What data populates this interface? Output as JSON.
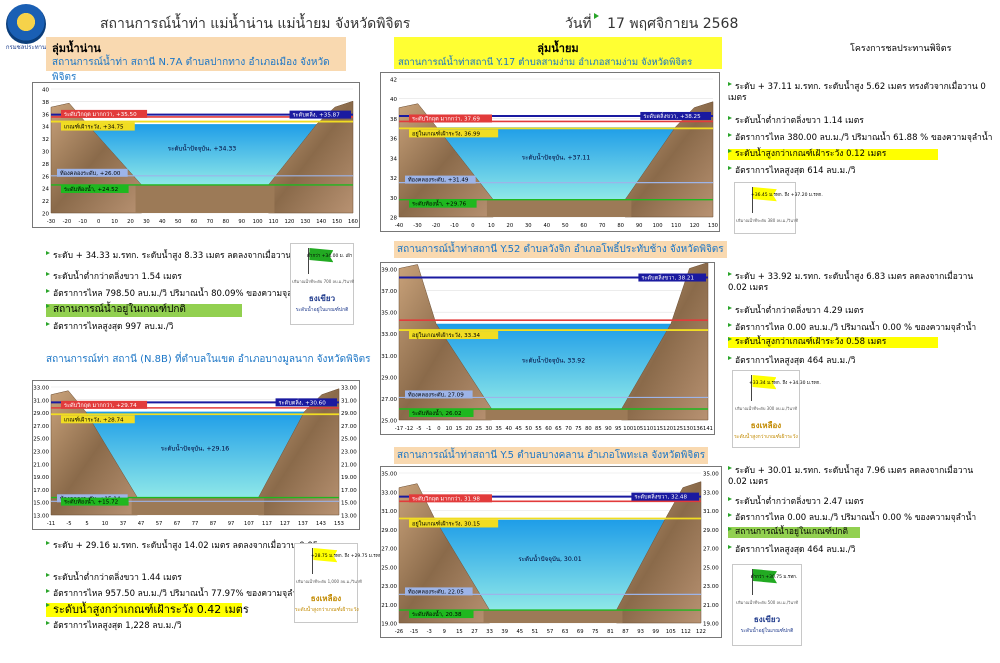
{
  "header": {
    "title": "สถานการณ์น้ำท่า แม่น้ำน่าน แม่น้ำยม จังหวัดพิจิตร",
    "date_label": "วันที่",
    "date_value": "17 พฤศจิกายน 2568",
    "logo_caption": "กรมชลประทาน",
    "project": "โครงการชลประทานพิจิตร"
  },
  "colors": {
    "bank": "#1a1aa0",
    "danger": "#e23b3b",
    "watch": "#f1dd22",
    "low": "#9db4e8",
    "bed": "#1fb81f",
    "water_top": "#1e9de8",
    "water_bottom": "#8fe8e8",
    "highlight_yellow": "#ffff00",
    "highlight_green": "#92d050",
    "flag_green": "#22aa22",
    "flag_yellow": "#ffff00"
  },
  "sections": {
    "nan": {
      "title": "ลุ่มน้ำน่าน"
    },
    "yom": {
      "title": "ลุ่มน้ำยม"
    }
  },
  "stations": [
    {
      "id": "n7a",
      "title": "สถานการณ์น้ำท่า สถานี N.7A ตำบลปากทาง อำเภอเมือง จังหวัดพิจิตร",
      "chart": {
        "y_ticks": [
          "40",
          "38",
          "36",
          "34",
          "32",
          "30",
          "28",
          "26",
          "24",
          "22",
          "20"
        ],
        "x_ticks": [
          "-30",
          "-20",
          "-10",
          "0",
          "10",
          "20",
          "30",
          "40",
          "50",
          "60",
          "70",
          "80",
          "90",
          "100",
          "110",
          "120",
          "130",
          "140",
          "150",
          "160"
        ],
        "bank_label": "ระดับตลิ่ง, +35.87",
        "danger_label": "ระดับวิกฤต มากกว่า, +35.50",
        "watch_label": "เกณฑ์เฝ้าระวัง, +34.75",
        "current_label": "ระดับน้ำปัจจุบัน, +34.33",
        "low_label": "ท้องคลองระดับ, +26.00",
        "bed_label": "ระดับท้องน้ำ, +24.52",
        "lines": {
          "bank": 35.87,
          "danger": 35.5,
          "watch": 34.75,
          "current": 34.33,
          "low": 26.0,
          "bed": 24.52
        },
        "ylim": [
          20,
          40
        ]
      },
      "info": [
        "ระดับ + 34.33 ม.รทก. ระดับน้ำสูง 8.33 เมตร ลดลงจากเมื่อวาน 0.2 เมตร",
        "ระดับน้ำต่ำกว่าตลิ่งขวา 1.54 เมตร",
        "อัตราการไหล 798.50 ลบ.ม./วิ ปริมาณน้ำ 80.09% ของความจุลำน้ำ",
        "สถานการณ์น้ำอยู่ในเกณฑ์ปกติ",
        "อัตราการไหลสูงสุด 997 ลบ.ม./วิ"
      ],
      "card": {
        "flag_text": "ต่ำกว่า +34.00 ม. เฝ้า",
        "note": "ปริมาณน้ำที่ระดับ 700 ลบ.ม./วินาที",
        "status": "ธงเขียว",
        "sub": "ระดับน้ำอยู่ในเกณฑ์ปกติ"
      }
    },
    {
      "id": "n8b",
      "title": "สถานการณ์ท่า สถานี (N.8B) ที่ตำบลในเขต อำเภอบางมูลนาก จังหวัดพิจิตร",
      "chart": {
        "y_ticks": [
          "+33.00",
          "+31.00",
          "+29.00",
          "+27.00",
          "+25.00",
          "+23.00",
          "+21.00",
          "+19.00",
          "+17.00",
          "+15.00",
          "+13.00"
        ],
        "y_ticks_right": [
          "33.00",
          "31.00",
          "29.00",
          "27.00",
          "25.00",
          "23.00",
          "21.00",
          "19.00",
          "17.00",
          "15.00",
          "13.00"
        ],
        "x_ticks": [
          "-11",
          "-5",
          "5",
          "10",
          "37",
          "47",
          "57",
          "67",
          "77",
          "87",
          "97",
          "107",
          "117",
          "127",
          "137",
          "143",
          "153"
        ],
        "bank_label": "ระดับตลิ่ง, +30.60",
        "danger_label": "ระดับวิกฤต มากกว่า, +29.74",
        "watch_label": "เกณฑ์เฝ้าระวัง, +28.74",
        "current_label": "ระดับน้ำปัจจุบัน, +29.16",
        "low_label": "ท้องคลองระดับ, +15.14",
        "bed_label": "ระดับท้องน้ำ, +15.72",
        "lines": {
          "bank": 30.6,
          "danger": 29.74,
          "watch": 28.74,
          "current": 29.16,
          "low": 15.14,
          "bed": 15.72
        },
        "ylim": [
          13,
          33
        ]
      },
      "info": [
        "ระดับ + 29.16 ม.รทก. ระดับน้ำสูง 14.02 เมตร ลดลงจากเมื่อวาน 0.05 เมตร",
        "ระดับน้ำต่ำกว่าตลิ่งขวา 1.44 เมตร",
        "อัตราการไหล 957.50 ลบ.ม./วิ ปริมาณน้ำ 77.97% ของความจุลำน้ำ",
        "ระดับน้ำสูงกว่าเกณฑ์เฝ้าระวัง 0.42 เมตร",
        "อัตราการไหลสูงสุด 1,228 ลบ.ม./วิ"
      ],
      "card": {
        "flag_text": "+28.75 ม.รทก. ถึง +29.75 ม.รทก.",
        "note": "ปริมาณน้ำที่ระดับ 1,000 ลบ.ม./วินาที",
        "status": "ธงเหลือง",
        "sub": "ระดับน้ำสูงกว่าเกณฑ์เฝ้าระวัง"
      }
    },
    {
      "id": "y17",
      "title": "สถานการณ์น้ำท่าสถานี Y.17 ตำบลสามง่าม อำเภอสามง่าม จังหวัดพิจิตร",
      "chart": {
        "y_ticks": [
          "42",
          "40",
          "38",
          "36",
          "34",
          "32",
          "30",
          "28"
        ],
        "x_ticks": [
          "-40",
          "-30",
          "-20",
          "-10",
          "0",
          "10",
          "20",
          "30",
          "40",
          "50",
          "60",
          "70",
          "80",
          "90",
          "100",
          "110",
          "120",
          "130"
        ],
        "bank_label": "ระดับตลิ่งขวา, +38.25",
        "danger_label": "ระดับวิกฤต มากกว่า, 37.69",
        "watch_label": "อยู่ในเกณฑ์เฝ้าระวัง, 36.99",
        "current_label": "ระดับน้ำปัจจุบัน, +37.11",
        "low_label": "ท้องคลองระดับ, +31.49",
        "bed_label": "ระดับท้องน้ำ, +29.76",
        "lines": {
          "bank": 38.25,
          "danger": 37.69,
          "watch": 36.99,
          "current": 37.11,
          "low": 31.49,
          "bed": 29.76
        },
        "ylim": [
          28,
          42
        ]
      },
      "info": [
        "ระดับ + 37.11 ม.รทก. ระดับน้ำสูง 5.62 เมตร ทรงตัวจากเมื่อวาน 0 เมตร",
        "ระดับน้ำต่ำกว่าตลิ่งขวา 1.14 เมตร",
        "อัตราการไหล 380.00 ลบ.ม./วิ ปริมาณน้ำ 61.88 % ของความจุลำน้ำ",
        "ระดับน้ำสูงกว่าเกณฑ์เฝ้าระวัง 0.12 เมตร",
        "อัตราการไหลสูงสุด 614 ลบ.ม./วิ"
      ],
      "card": {
        "flag_text": "+36.45 ม.รทก. ถึง +37.20 ม.รทก.",
        "note": "ปริมาณน้ำที่ระดับ 380 ลบ.ม./วินาที",
        "status": "",
        "sub": ""
      }
    },
    {
      "id": "y52",
      "title": "สถานการณ์น้ำท่าสถานี Y.52 ตำบลวังจิก อำเภอโพธิ์ประทับช้าง จังหวัดพิจิตร",
      "chart": {
        "y_ticks": [
          "39.00",
          "37.00",
          "35.00",
          "33.00",
          "31.00",
          "29.00",
          "27.00",
          "25.00"
        ],
        "x_ticks": [
          "-17",
          "-12",
          "-5",
          "-1",
          "0",
          "10",
          "15",
          "20",
          "25",
          "30",
          "35",
          "40",
          "45",
          "50",
          "55",
          "60",
          "65",
          "70",
          "75",
          "80",
          "85",
          "90",
          "95",
          "100",
          "105",
          "110",
          "115",
          "120",
          "125",
          "130",
          "136",
          "141"
        ],
        "bank_label": "ระดับตลิ่งขวา, 38.21",
        "danger_label": "",
        "watch_label": "อยู่ในเกณฑ์เฝ้าระวัง, 33.34",
        "current_label": "ระดับน้ำปัจจุบัน, 33.92",
        "low_label": "ท้องคลองระดับ, 27.09",
        "bed_label": "ระดับท้องน้ำ, 26.02",
        "lines": {
          "bank": 38.21,
          "danger": 34.25,
          "watch": 33.34,
          "current": 33.92,
          "low": 27.09,
          "bed": 26.02
        },
        "ylim": [
          25,
          39
        ]
      },
      "info": [
        "ระดับ + 33.92 ม.รทก. ระดับน้ำสูง 6.83 เมตร ลดลงจากเมื่อวาน 0.02 เมตร",
        "ระดับน้ำต่ำกว่าตลิ่งขวา 4.29 เมตร",
        "อัตราการไหล 0.00 ลบ.ม./วิ ปริมาณน้ำ 0.00 % ของความจุลำน้ำ",
        "ระดับน้ำสูงกว่าเกณฑ์เฝ้าระวัง 0.58 เมตร",
        "อัตราการไหลสูงสุด 464 ลบ.ม./วิ"
      ],
      "card": {
        "flag_text": "+33.34 ม.รทก. ถึง +34.30 ม.รทก.",
        "note": "ปริมาณน้ำที่ระดับ 300 ลบ.ม./วินาที",
        "status": "ธงเหลือง",
        "sub": "ระดับน้ำสูงกว่าเกณฑ์เฝ้าระวัง"
      }
    },
    {
      "id": "y5",
      "title": "สถานการณ์น้ำท่าสถานี Y.5 ตำบลบางคลาน อำเภอโพทะเล จังหวัดพิจิตร",
      "chart": {
        "y_ticks": [
          "35.00",
          "33.00",
          "31.00",
          "29.00",
          "27.00",
          "25.00",
          "23.00",
          "21.00",
          "19.00"
        ],
        "y_ticks_right": [
          "35.00",
          "33.00",
          "31.00",
          "29.00",
          "27.00",
          "25.00",
          "23.00",
          "21.00",
          "19.00"
        ],
        "x_ticks": [
          "-26",
          "-15",
          "-3",
          "9",
          "15",
          "27",
          "33",
          "39",
          "45",
          "51",
          "57",
          "63",
          "69",
          "75",
          "81",
          "87",
          "93",
          "99",
          "105",
          "112",
          "122"
        ],
        "bank_label": "ระดับตลิ่งขวา, 32.48",
        "danger_label": "ระดับวิกฤต มากกว่า, 31.98",
        "watch_label": "อยู่ในเกณฑ์เฝ้าระวัง, 30.15",
        "current_label": "ระดับน้ำปัจจุบัน, 30.01",
        "low_label": "ท้องคลองระดับ, 22.05",
        "bed_label": "ระดับท้องน้ำ, 20.38",
        "lines": {
          "bank": 32.48,
          "danger": 31.98,
          "watch": 30.15,
          "current": 30.01,
          "low": 22.05,
          "bed": 20.38
        },
        "ylim": [
          19,
          35
        ]
      },
      "info": [
        "ระดับ + 30.01 ม.รทก. ระดับน้ำสูง 7.96 เมตร ลดลงจากเมื่อวาน 0.02 เมตร",
        "ระดับน้ำต่ำกว่าตลิ่งขวา 2.47 เมตร",
        "อัตราการไหล 0.00 ลบ.ม./วิ ปริมาณน้ำ 0.00 % ของความจุลำน้ำ",
        "สถานการณ์น้ำอยู่ในเกณฑ์ปกติ",
        "อัตราการไหลสูงสุด 464 ลบ.ม./วิ"
      ],
      "card": {
        "flag_text": "ต่ำกว่า +30.75 ม.รทก.",
        "note": "ปริมาณน้ำที่ระดับ 500 ลบ.ม./วินาที",
        "status": "ธงเขียว",
        "sub": "ระดับน้ำอยู่ในเกณฑ์ปกติ"
      }
    }
  ]
}
